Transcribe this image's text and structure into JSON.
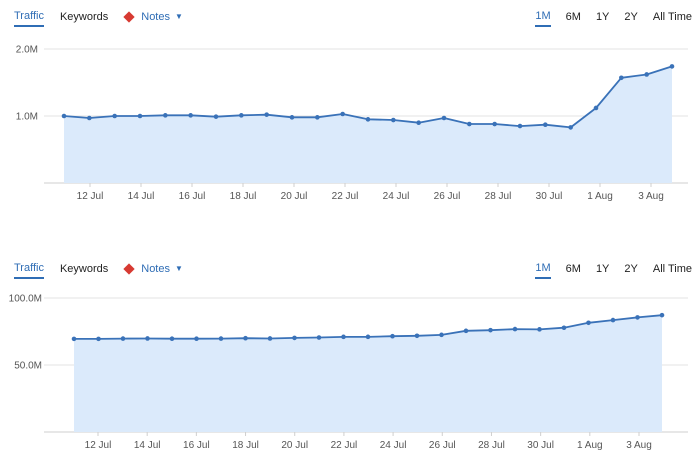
{
  "panels": [
    {
      "tabs": {
        "traffic": "Traffic",
        "keywords": "Keywords",
        "notes": "Notes"
      },
      "ranges": [
        "1M",
        "6M",
        "1Y",
        "2Y",
        "All Time"
      ]
    },
    {
      "tabs": {
        "traffic": "Traffic",
        "keywords": "Keywords",
        "notes": "Notes"
      },
      "ranges": [
        "1M",
        "6M",
        "1Y",
        "2Y",
        "All Time"
      ]
    }
  ],
  "colors": {
    "accent": "#2f6db5",
    "line": "#3a72b8",
    "fill": "#dbeafb",
    "note_marker": "#d73a32"
  },
  "chart_data": [
    {
      "type": "area",
      "x_ticks": [
        "12 Jul",
        "14 Jul",
        "16 Jul",
        "18 Jul",
        "20 Jul",
        "22 Jul",
        "24 Jul",
        "26 Jul",
        "28 Jul",
        "30 Jul",
        "1 Aug",
        "3 Aug"
      ],
      "y_ticks": [
        {
          "value": 1000000,
          "label": "1.0M"
        },
        {
          "value": 2000000,
          "label": "2.0M"
        }
      ],
      "ylim": [
        0,
        2000000
      ],
      "values": [
        1000000,
        970000,
        1000000,
        1000000,
        1010000,
        1010000,
        990000,
        1010000,
        1020000,
        980000,
        980000,
        1030000,
        950000,
        940000,
        900000,
        970000,
        880000,
        880000,
        850000,
        870000,
        830000,
        1120000,
        1570000,
        1620000,
        1740000
      ],
      "grid": true
    },
    {
      "type": "area",
      "x_ticks": [
        "12 Jul",
        "14 Jul",
        "16 Jul",
        "18 Jul",
        "20 Jul",
        "22 Jul",
        "24 Jul",
        "26 Jul",
        "28 Jul",
        "30 Jul",
        "1 Aug",
        "3 Aug"
      ],
      "y_ticks": [
        {
          "value": 50000000,
          "label": "50.0M"
        },
        {
          "value": 100000000,
          "label": "100.0M"
        }
      ],
      "ylim": [
        0,
        100000000
      ],
      "values": [
        69500000,
        69500000,
        69700000,
        69800000,
        69600000,
        69600000,
        69700000,
        70000000,
        69800000,
        70200000,
        70500000,
        71000000,
        71000000,
        71500000,
        71800000,
        72500000,
        75500000,
        76000000,
        76800000,
        76600000,
        77800000,
        81500000,
        83500000,
        85500000,
        87200000
      ],
      "grid": true
    }
  ]
}
